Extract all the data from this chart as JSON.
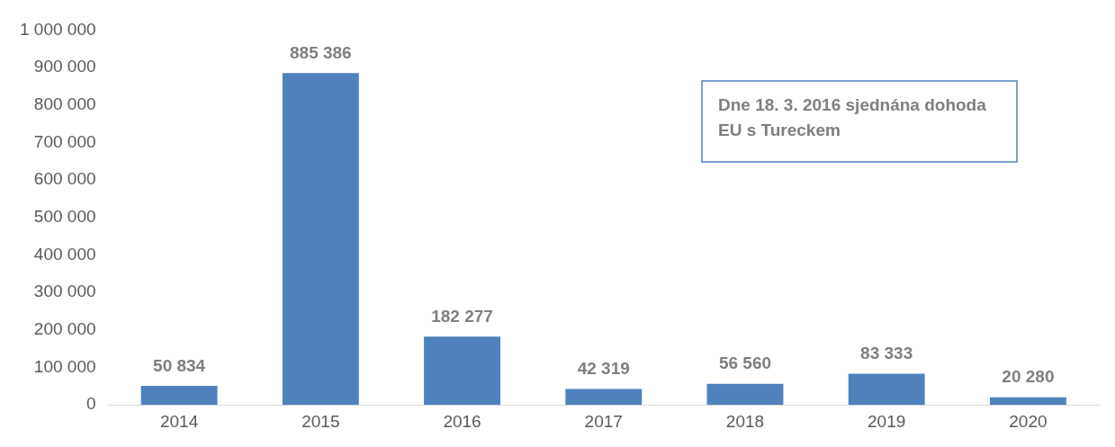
{
  "chart_data": {
    "type": "bar",
    "categories": [
      "2014",
      "2015",
      "2016",
      "2017",
      "2018",
      "2019",
      "2020"
    ],
    "values": [
      50834,
      885386,
      182277,
      42319,
      56560,
      83333,
      20280
    ],
    "value_labels": [
      "50 834",
      "885 386",
      "182 277",
      "42 319",
      "56 560",
      "83 333",
      "20 280"
    ],
    "color": "#4f81bd",
    "ylim": [
      0,
      1000000
    ],
    "yticks": [
      0,
      {
        "value": 100000,
        "label": "100 000"
      },
      {
        "value": 200000,
        "label": "200 000"
      },
      {
        "value": 300000,
        "label": "300 000"
      },
      {
        "value": 400000,
        "label": "400 000"
      },
      {
        "value": 500000,
        "label": "500 000"
      },
      {
        "value": 600000,
        "label": "600 000"
      },
      {
        "value": 700000,
        "label": "700 000"
      },
      {
        "value": 800000,
        "label": "800 000"
      },
      {
        "value": 900000,
        "label": "900 000"
      },
      {
        "value": 1000000,
        "label": "1 000 000"
      }
    ],
    "grid": false,
    "legend": false,
    "annotations": [
      "Dne 18. 3. 2016 sjednána dohoda EU s Tureckem"
    ]
  }
}
